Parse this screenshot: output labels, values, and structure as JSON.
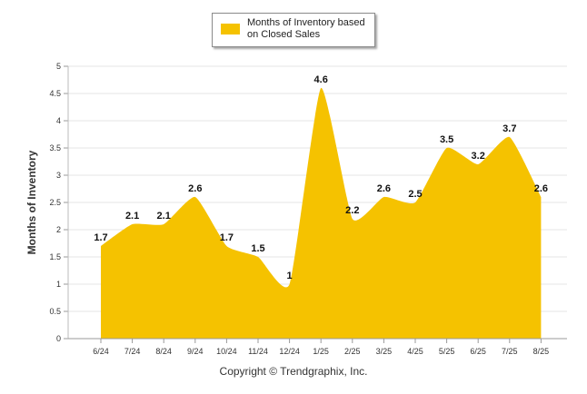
{
  "legend": {
    "label": "Months of Inventory based on Closed Sales"
  },
  "footer": {
    "copyright": "Copyright © Trendgraphix, Inc."
  },
  "colors": {
    "area": "#F5C200",
    "grid": "#e6e6e6",
    "text": "#333333"
  },
  "chart_data": {
    "type": "area",
    "categories": [
      "6/24",
      "7/24",
      "8/24",
      "9/24",
      "10/24",
      "11/24",
      "12/24",
      "1/25",
      "2/25",
      "3/25",
      "4/25",
      "5/25",
      "6/25",
      "7/25",
      "8/25"
    ],
    "series": [
      {
        "name": "Months of Inventory based on Closed Sales",
        "values": [
          1.7,
          2.1,
          2.1,
          2.6,
          1.7,
          1.5,
          1,
          4.6,
          2.2,
          2.6,
          2.5,
          3.5,
          3.2,
          3.7,
          2.6
        ]
      }
    ],
    "data_labels": [
      "1.7",
      "2.1",
      "2.1",
      "2.6",
      "1.7",
      "1.5",
      "1",
      "4.6",
      "2.2",
      "2.6",
      "2.5",
      "3.5",
      "3.2",
      "3.7",
      "2.6"
    ],
    "yticks": [
      "0",
      "0.5",
      "1",
      "1.5",
      "2",
      "2.5",
      "3",
      "3.5",
      "4",
      "4.5",
      "5"
    ],
    "ylabel": "Months of Inventory",
    "xlabel": "",
    "ylim": [
      0,
      5
    ],
    "grid": true,
    "legend_position": "top-center"
  }
}
